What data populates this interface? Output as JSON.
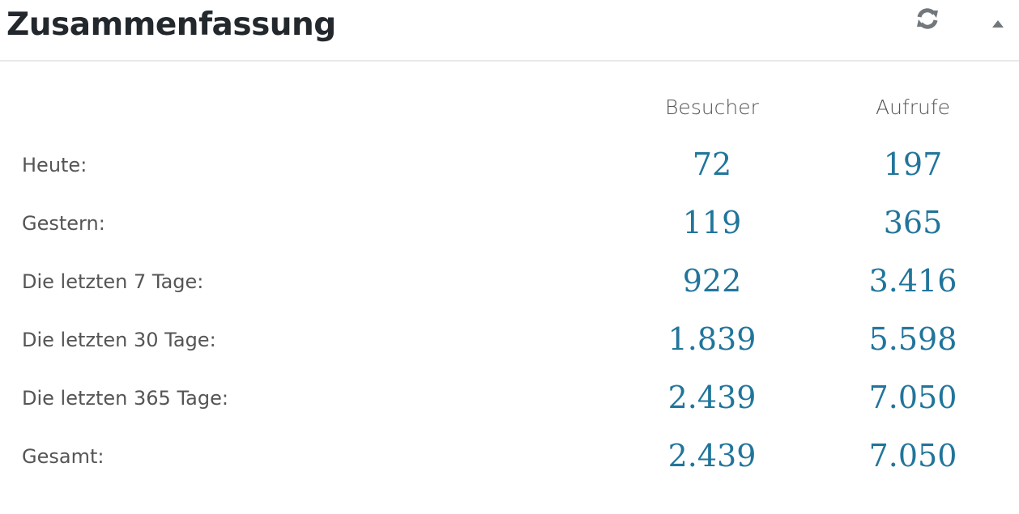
{
  "header": {
    "title": "Zusammenfassung",
    "refresh_icon": "refresh-icon",
    "toggle_icon": "triangle-up-icon"
  },
  "columns": [
    "Besucher",
    "Aufrufe"
  ],
  "rows": [
    {
      "label": "Heute:",
      "visitors": "72",
      "views": "197"
    },
    {
      "label": "Gestern:",
      "visitors": "119",
      "views": "365"
    },
    {
      "label": "Die letzten 7 Tage:",
      "visitors": "922",
      "views": "3.416"
    },
    {
      "label": "Die letzten 30 Tage:",
      "visitors": "1.839",
      "views": "5.598"
    },
    {
      "label": "Die letzten 365 Tage:",
      "visitors": "2.439",
      "views": "7.050"
    },
    {
      "label": "Gesamt:",
      "visitors": "2.439",
      "views": "7.050"
    }
  ],
  "colors": {
    "number": "#21759b",
    "label": "#555555",
    "title": "#23282d"
  }
}
